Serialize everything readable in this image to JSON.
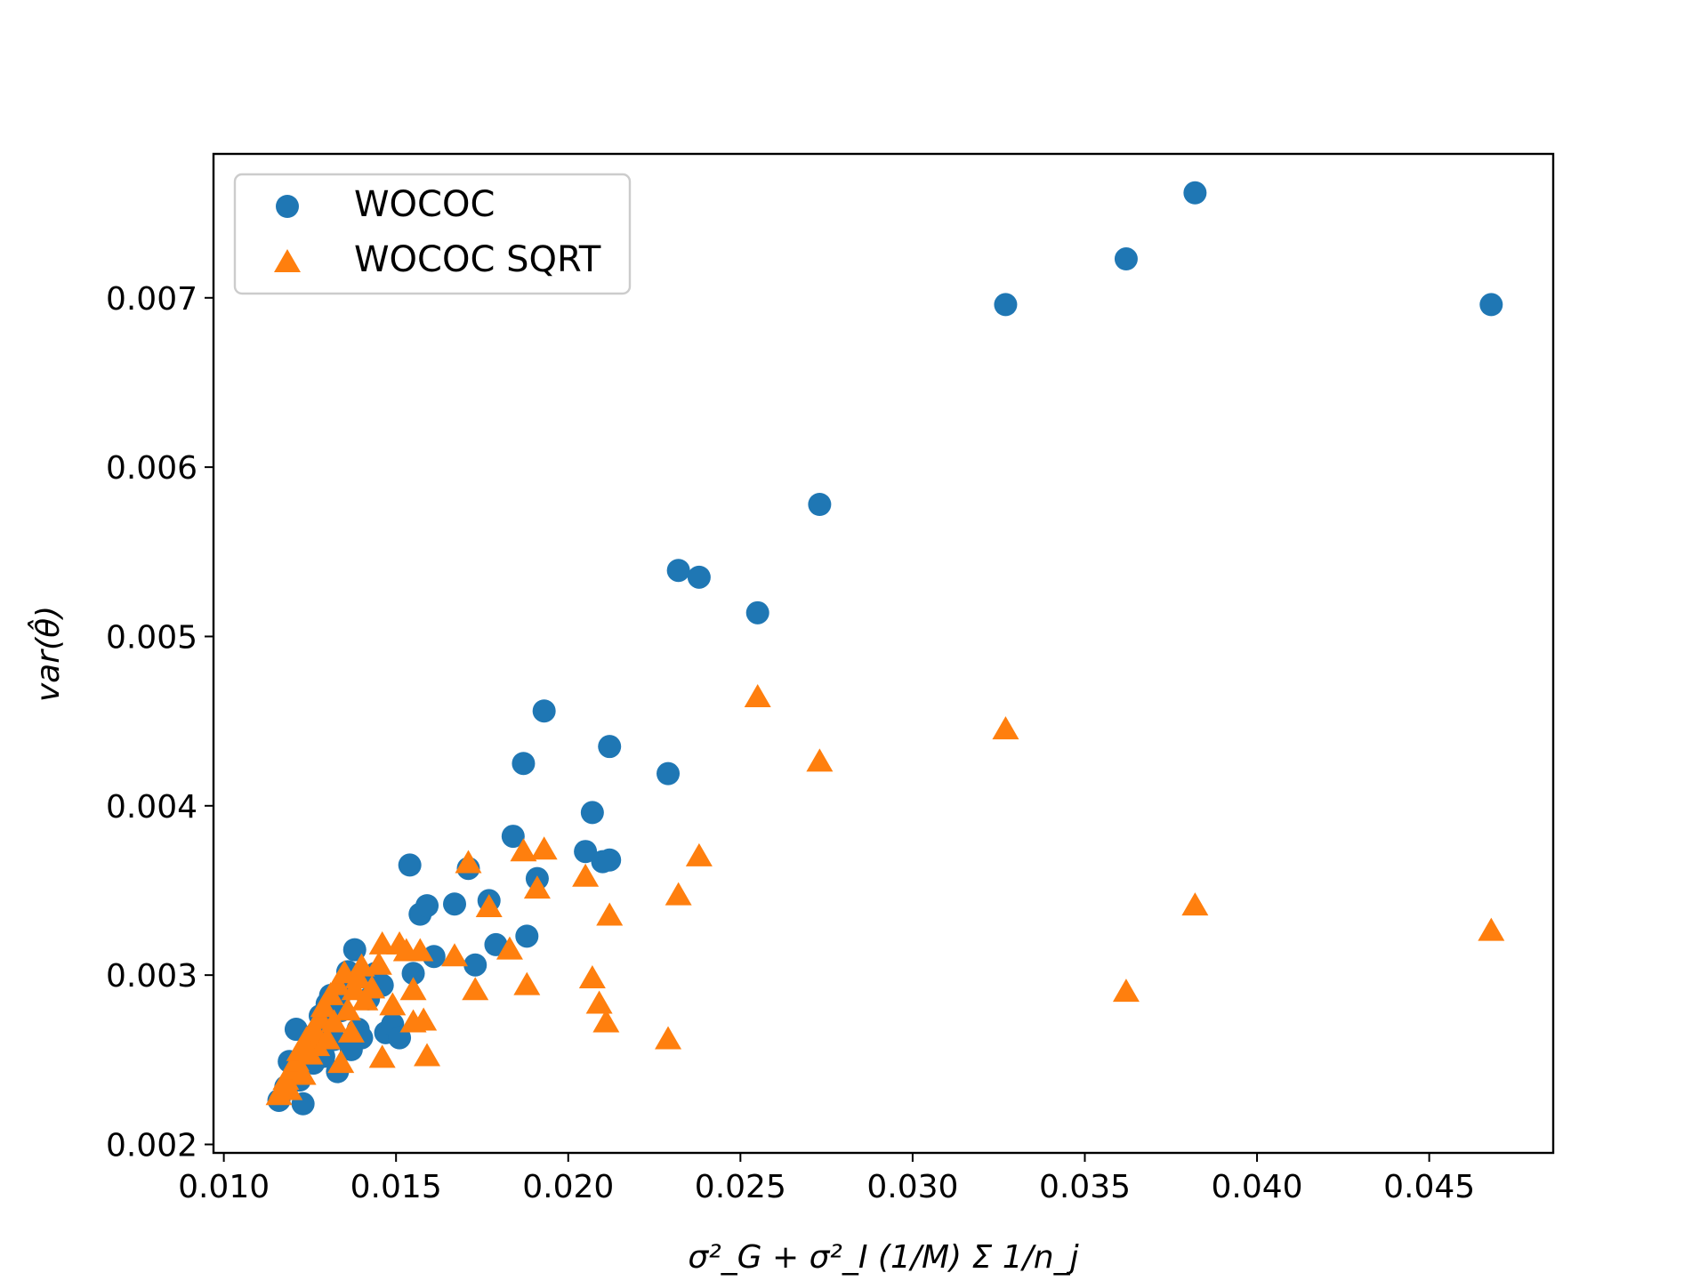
{
  "chart_data": {
    "type": "scatter",
    "title": "",
    "xlabel": "σ²_G + σ²_I (1/M) Σ 1/n_j",
    "ylabel": "var(θ̂)",
    "xlim": [
      0.0097,
      0.0486
    ],
    "ylim": [
      0.00195,
      0.00785
    ],
    "xticks": [
      "0.010",
      "0.015",
      "0.020",
      "0.025",
      "0.030",
      "0.035",
      "0.040",
      "0.045"
    ],
    "yticks": [
      "0.002",
      "0.003",
      "0.004",
      "0.005",
      "0.006",
      "0.007"
    ],
    "grid": false,
    "legend_position": "top-left",
    "series": [
      {
        "name": "WOCOC",
        "marker": "circle",
        "color": "#1f77b4",
        "points": [
          [
            0.0116,
            0.00226
          ],
          [
            0.0118,
            0.00234
          ],
          [
            0.0119,
            0.00249
          ],
          [
            0.0121,
            0.00268
          ],
          [
            0.0122,
            0.00238
          ],
          [
            0.0123,
            0.00224
          ],
          [
            0.0124,
            0.00256
          ],
          [
            0.0125,
            0.00262
          ],
          [
            0.0126,
            0.00248
          ],
          [
            0.0127,
            0.00266
          ],
          [
            0.0128,
            0.00276
          ],
          [
            0.0129,
            0.00252
          ],
          [
            0.013,
            0.00283
          ],
          [
            0.0131,
            0.00288
          ],
          [
            0.0132,
            0.00262
          ],
          [
            0.0133,
            0.00243
          ],
          [
            0.0134,
            0.00279
          ],
          [
            0.0135,
            0.00291
          ],
          [
            0.0136,
            0.00302
          ],
          [
            0.0137,
            0.00256
          ],
          [
            0.0138,
            0.00315
          ],
          [
            0.0139,
            0.00268
          ],
          [
            0.014,
            0.00263
          ],
          [
            0.0142,
            0.00286
          ],
          [
            0.0144,
            0.00301
          ],
          [
            0.0146,
            0.00294
          ],
          [
            0.0147,
            0.00266
          ],
          [
            0.0149,
            0.00271
          ],
          [
            0.0151,
            0.00263
          ],
          [
            0.0154,
            0.00365
          ],
          [
            0.0155,
            0.00301
          ],
          [
            0.0157,
            0.00336
          ],
          [
            0.0159,
            0.00341
          ],
          [
            0.0161,
            0.00311
          ],
          [
            0.0167,
            0.00342
          ],
          [
            0.0171,
            0.00363
          ],
          [
            0.0173,
            0.00306
          ],
          [
            0.0177,
            0.00344
          ],
          [
            0.0179,
            0.00318
          ],
          [
            0.0184,
            0.00382
          ],
          [
            0.0187,
            0.00425
          ],
          [
            0.0188,
            0.00323
          ],
          [
            0.0191,
            0.00357
          ],
          [
            0.0193,
            0.00456
          ],
          [
            0.0205,
            0.00373
          ],
          [
            0.0207,
            0.00396
          ],
          [
            0.021,
            0.00367
          ],
          [
            0.0212,
            0.00368
          ],
          [
            0.0212,
            0.00435
          ],
          [
            0.0229,
            0.00419
          ],
          [
            0.0232,
            0.00539
          ],
          [
            0.0238,
            0.00535
          ],
          [
            0.0255,
            0.00514
          ],
          [
            0.0273,
            0.00578
          ],
          [
            0.0327,
            0.00696
          ],
          [
            0.0362,
            0.00723
          ],
          [
            0.0382,
            0.00762
          ],
          [
            0.0468,
            0.00696
          ]
        ]
      },
      {
        "name": "WOCOC SQRT",
        "marker": "triangle",
        "color": "#ff7f0e",
        "points": [
          [
            0.0116,
            0.00229
          ],
          [
            0.0117,
            0.00233
          ],
          [
            0.0118,
            0.00238
          ],
          [
            0.0119,
            0.00232
          ],
          [
            0.012,
            0.00244
          ],
          [
            0.0121,
            0.00249
          ],
          [
            0.0122,
            0.00255
          ],
          [
            0.0123,
            0.00241
          ],
          [
            0.0124,
            0.00262
          ],
          [
            0.0125,
            0.00253
          ],
          [
            0.0126,
            0.00268
          ],
          [
            0.0127,
            0.00258
          ],
          [
            0.0128,
            0.00274
          ],
          [
            0.0129,
            0.00281
          ],
          [
            0.013,
            0.00262
          ],
          [
            0.0131,
            0.00288
          ],
          [
            0.0132,
            0.00272
          ],
          [
            0.0133,
            0.00294
          ],
          [
            0.0134,
            0.00248
          ],
          [
            0.0135,
            0.00301
          ],
          [
            0.0136,
            0.00279
          ],
          [
            0.0137,
            0.00266
          ],
          [
            0.0138,
            0.00291
          ],
          [
            0.0139,
            0.00298
          ],
          [
            0.014,
            0.00305
          ],
          [
            0.0141,
            0.00285
          ],
          [
            0.0143,
            0.00292
          ],
          [
            0.0145,
            0.00306
          ],
          [
            0.0146,
            0.00318
          ],
          [
            0.0146,
            0.00251
          ],
          [
            0.0149,
            0.00282
          ],
          [
            0.0151,
            0.00318
          ],
          [
            0.0153,
            0.00314
          ],
          [
            0.0155,
            0.00272
          ],
          [
            0.0155,
            0.00291
          ],
          [
            0.0157,
            0.00314
          ],
          [
            0.0158,
            0.00273
          ],
          [
            0.0159,
            0.00252
          ],
          [
            0.0167,
            0.00311
          ],
          [
            0.0171,
            0.00366
          ],
          [
            0.0173,
            0.00291
          ],
          [
            0.0177,
            0.0034
          ],
          [
            0.0183,
            0.00315
          ],
          [
            0.0187,
            0.00373
          ],
          [
            0.0188,
            0.00294
          ],
          [
            0.0191,
            0.00351
          ],
          [
            0.0193,
            0.00374
          ],
          [
            0.0205,
            0.00358
          ],
          [
            0.0207,
            0.00298
          ],
          [
            0.0209,
            0.00283
          ],
          [
            0.0211,
            0.00272
          ],
          [
            0.0212,
            0.00335
          ],
          [
            0.0229,
            0.00262
          ],
          [
            0.0232,
            0.00347
          ],
          [
            0.0238,
            0.0037
          ],
          [
            0.0255,
            0.00464
          ],
          [
            0.0273,
            0.00426
          ],
          [
            0.0327,
            0.00445
          ],
          [
            0.0362,
            0.0029
          ],
          [
            0.0382,
            0.00341
          ],
          [
            0.0468,
            0.00326
          ]
        ]
      }
    ]
  }
}
